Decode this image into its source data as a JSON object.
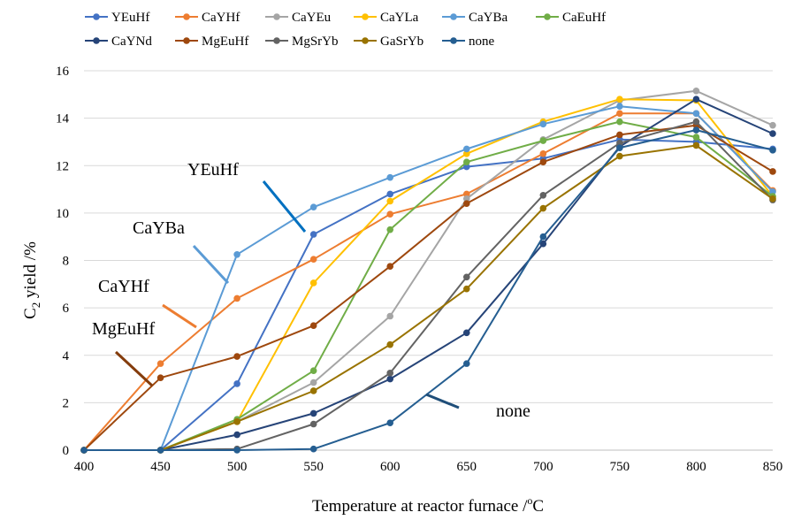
{
  "chart_data": {
    "type": "line",
    "title": "",
    "xlabel": "Temperature at reactor furnace /",
    "xlabel_unit_sup": "o",
    "xlabel_unit": "C",
    "ylabel_prefix": "C",
    "ylabel_sub": "2",
    "ylabel_suffix": " yield /%",
    "xlim": [
      400,
      850
    ],
    "ylim": [
      0,
      16
    ],
    "x": [
      400,
      450,
      500,
      550,
      600,
      650,
      700,
      750,
      800,
      850
    ],
    "x_ticks": [
      "400",
      "450",
      "500",
      "550",
      "600",
      "650",
      "700",
      "750",
      "800",
      "850"
    ],
    "y_ticks": [
      "0",
      "2",
      "4",
      "6",
      "8",
      "10",
      "12",
      "14",
      "16"
    ],
    "grid": "horizontal",
    "legend_position": "top",
    "series": [
      {
        "name": "YEuHf",
        "color": "#4472C4",
        "values": [
          0,
          0,
          2.8,
          9.1,
          10.8,
          11.95,
          12.3,
          13.1,
          13.0,
          12.7
        ]
      },
      {
        "name": "CaYHf",
        "color": "#ED7D31",
        "values": [
          0,
          3.65,
          6.4,
          8.05,
          9.95,
          10.8,
          12.5,
          14.2,
          14.2,
          10.95
        ]
      },
      {
        "name": "CaYEu",
        "color": "#A5A5A5",
        "values": [
          0,
          0,
          1.2,
          2.85,
          5.65,
          10.6,
          13.1,
          14.75,
          15.15,
          13.7
        ]
      },
      {
        "name": "CaYLa",
        "color": "#FFC000",
        "values": [
          0,
          0,
          1.2,
          7.05,
          10.5,
          12.5,
          13.85,
          14.8,
          14.75,
          10.7
        ]
      },
      {
        "name": "CaYBa",
        "color": "#5B9BD5",
        "values": [
          0,
          0,
          8.25,
          10.25,
          11.5,
          12.7,
          13.75,
          14.5,
          14.2,
          10.9
        ]
      },
      {
        "name": "CaEuHf",
        "color": "#70AD47",
        "values": [
          0,
          0,
          1.3,
          3.35,
          9.3,
          12.15,
          13.05,
          13.85,
          13.2,
          10.7
        ]
      },
      {
        "name": "CaYNd",
        "color": "#264478",
        "values": [
          0,
          0,
          0.65,
          1.55,
          3.0,
          4.95,
          8.7,
          12.8,
          14.8,
          13.35
        ]
      },
      {
        "name": "MgEuHf",
        "color": "#9E480E",
        "values": [
          0,
          3.05,
          3.95,
          5.25,
          7.75,
          10.4,
          12.15,
          13.3,
          13.7,
          11.75
        ]
      },
      {
        "name": "MgSrYb",
        "color": "#636363",
        "values": [
          0,
          0,
          0.05,
          1.1,
          3.25,
          7.3,
          10.75,
          12.95,
          13.85,
          10.55
        ]
      },
      {
        "name": "GaSrYb",
        "color": "#997300",
        "values": [
          0,
          0,
          1.2,
          2.5,
          4.45,
          6.8,
          10.2,
          12.4,
          12.85,
          10.6
        ]
      },
      {
        "name": "none",
        "color": "#255E91",
        "values": [
          0,
          0,
          0,
          0.05,
          1.15,
          3.65,
          9.0,
          12.75,
          13.5,
          12.65
        ]
      }
    ],
    "annotations": [
      {
        "text": "YEuHf",
        "series": "YEuHf",
        "color": "#0070C0"
      },
      {
        "text": "CaYBa",
        "series": "CaYBa",
        "color": "#5B9BD5"
      },
      {
        "text": "CaYHf",
        "series": "CaYHf",
        "color": "#ED7D31"
      },
      {
        "text": "MgEuHf",
        "series": "MgEuHf",
        "color": "#843C0C"
      },
      {
        "text": "none",
        "series": "none",
        "color": "#1F4E79"
      }
    ]
  }
}
